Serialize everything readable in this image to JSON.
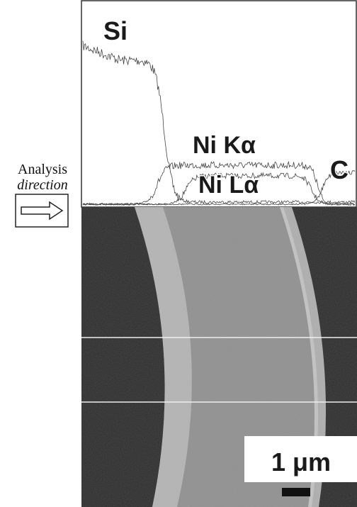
{
  "panel": {
    "direction_label": [
      "Analysis",
      "direction"
    ]
  },
  "profiles": {
    "si": "Si",
    "ni_ka": "Ni Kα",
    "ni_la": "Ni Lα",
    "c": "C"
  },
  "scale_bar": {
    "label": "1 μm"
  }
}
